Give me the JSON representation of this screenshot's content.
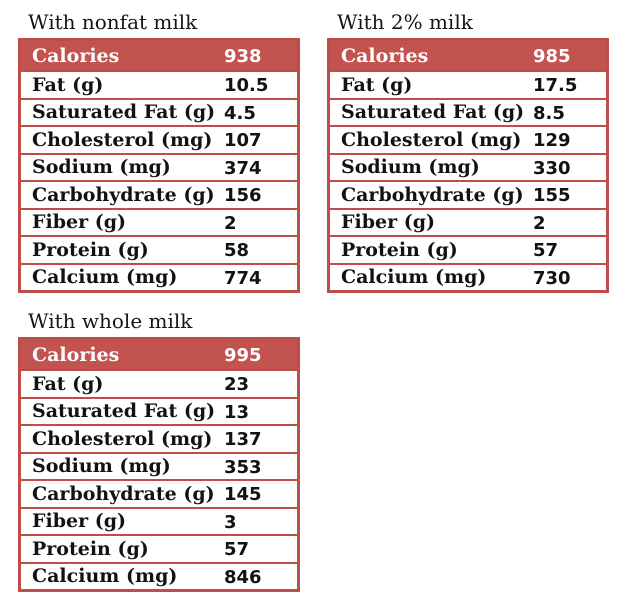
{
  "colors": {
    "accent_red": "#c0504d",
    "table_border": "#bf4e4b",
    "header_bg": "#c2534e",
    "header_text": "#ffffff",
    "body_text": "#121212"
  },
  "chart_data": [
    {
      "type": "table",
      "title": "With nonfat milk",
      "header": {
        "label": "Calories",
        "value": 938
      },
      "rows": [
        {
          "label": "Fat (g)",
          "value": 10.5
        },
        {
          "label": "Saturated Fat (g)",
          "value": 4.5
        },
        {
          "label": "Cholesterol (mg)",
          "value": 107
        },
        {
          "label": "Sodium (mg)",
          "value": 374
        },
        {
          "label": "Carbohydrate (g)",
          "value": 156
        },
        {
          "label": "Fiber (g)",
          "value": 2
        },
        {
          "label": "Protein (g)",
          "value": 58
        },
        {
          "label": "Calcium (mg)",
          "value": 774
        }
      ]
    },
    {
      "type": "table",
      "title": "With 2% milk",
      "header": {
        "label": "Calories",
        "value": 985
      },
      "rows": [
        {
          "label": "Fat (g)",
          "value": 17.5
        },
        {
          "label": "Saturated Fat (g)",
          "value": 8.5
        },
        {
          "label": "Cholesterol (mg)",
          "value": 129
        },
        {
          "label": "Sodium (mg)",
          "value": 330
        },
        {
          "label": "Carbohydrate (g)",
          "value": 155
        },
        {
          "label": "Fiber (g)",
          "value": 2
        },
        {
          "label": "Protein (g)",
          "value": 57
        },
        {
          "label": "Calcium (mg)",
          "value": 730
        }
      ]
    },
    {
      "type": "table",
      "title": "With whole milk",
      "header": {
        "label": "Calories",
        "value": 995
      },
      "rows": [
        {
          "label": "Fat (g)",
          "value": 23
        },
        {
          "label": "Saturated Fat (g)",
          "value": 13
        },
        {
          "label": "Cholesterol (mg)",
          "value": 137
        },
        {
          "label": "Sodium (mg)",
          "value": 353
        },
        {
          "label": "Carbohydrate (g)",
          "value": 145
        },
        {
          "label": "Fiber (g)",
          "value": 3
        },
        {
          "label": "Protein (g)",
          "value": 57
        },
        {
          "label": "Calcium (mg)",
          "value": 846
        }
      ]
    }
  ]
}
